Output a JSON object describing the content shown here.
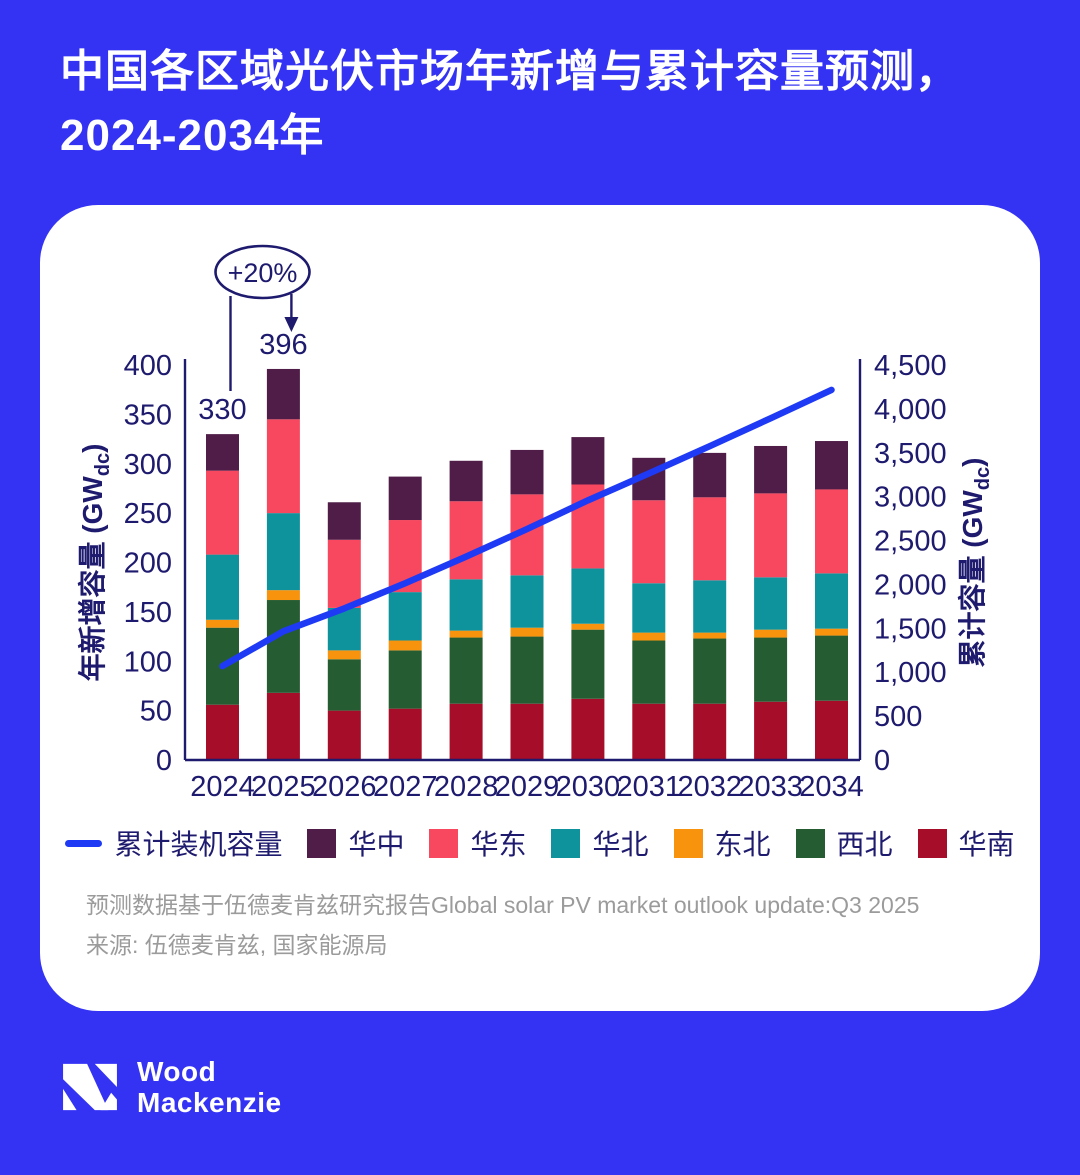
{
  "title": {
    "line1": "中国各区域光伏市场年新增与累计容量预测，",
    "line2": "2024-2034年"
  },
  "colors": {
    "background": "#3433F4",
    "card": "#FFFFFF",
    "axis_text": "#1E1A6E",
    "cumulative_line": "#1F3AF5",
    "footnote_text": "#9B9B9B"
  },
  "chart_data": {
    "type": "stacked-bar-with-line",
    "categories": [
      "2024",
      "2025",
      "2026",
      "2027",
      "2028",
      "2029",
      "2030",
      "2031",
      "2032",
      "2033",
      "2034"
    ],
    "series": [
      {
        "name": "华南",
        "color": "#A50D28",
        "values": [
          56,
          68,
          50,
          52,
          57,
          57,
          62,
          57,
          57,
          59,
          60
        ]
      },
      {
        "name": "西北",
        "color": "#265C32",
        "values": [
          78,
          94,
          52,
          59,
          67,
          68,
          70,
          64,
          66,
          65,
          66
        ]
      },
      {
        "name": "东北",
        "color": "#F8930E",
        "values": [
          8,
          10,
          9,
          10,
          7,
          9,
          6,
          8,
          6,
          8,
          7
        ]
      },
      {
        "name": "华北",
        "color": "#0E929C",
        "values": [
          66,
          78,
          43,
          49,
          52,
          53,
          56,
          50,
          53,
          53,
          56
        ]
      },
      {
        "name": "华东",
        "color": "#F8485F",
        "values": [
          85,
          95,
          69,
          73,
          79,
          82,
          85,
          84,
          84,
          85,
          85
        ]
      },
      {
        "name": "华中",
        "color": "#4F1D47",
        "values": [
          37,
          51,
          38,
          44,
          41,
          45,
          48,
          43,
          45,
          48,
          49
        ]
      }
    ],
    "bar_totals": [
      330,
      396,
      261,
      287,
      303,
      314,
      327,
      306,
      311,
      318,
      323
    ],
    "line_series": {
      "name": "累计装机容量",
      "color": "#1F3AF5",
      "values": [
        1070,
        1466,
        1727,
        2014,
        2317,
        2631,
        2958,
        3264,
        3575,
        3893,
        4216
      ]
    },
    "left_axis": {
      "title_main": "年新增容量 (GW",
      "title_sub": "dc",
      "title_end": ")",
      "min": 0,
      "max": 400,
      "step": 50
    },
    "right_axis": {
      "title_main": "累计容量 (GW",
      "title_sub": "dc",
      "title_end": ")",
      "min": 0,
      "max": 4500,
      "step": 500
    },
    "bar_labels": [
      {
        "index": 0,
        "text": "330"
      },
      {
        "index": 1,
        "text": "396"
      }
    ],
    "annotation": {
      "text": "+20%"
    },
    "legend_position": "bottom",
    "grid": false
  },
  "legend": [
    {
      "label": "累计装机容量",
      "type": "line",
      "color": "#1F3AF5"
    },
    {
      "label": "华中",
      "type": "box",
      "color": "#4F1D47"
    },
    {
      "label": "华东",
      "type": "box",
      "color": "#F8485F"
    },
    {
      "label": "华北",
      "type": "box",
      "color": "#0E929C"
    },
    {
      "label": "东北",
      "type": "box",
      "color": "#F8930E"
    },
    {
      "label": "西北",
      "type": "box",
      "color": "#265C32"
    },
    {
      "label": "华南",
      "type": "box",
      "color": "#A50D28"
    }
  ],
  "footnotes": {
    "note": "预测数据基于伍德麦肯兹研究报告Global solar PV market outlook update:Q3 2025",
    "source": "来源: 伍德麦肯兹, 国家能源局"
  },
  "logo": {
    "line1": "Wood",
    "line2": "Mackenzie"
  }
}
